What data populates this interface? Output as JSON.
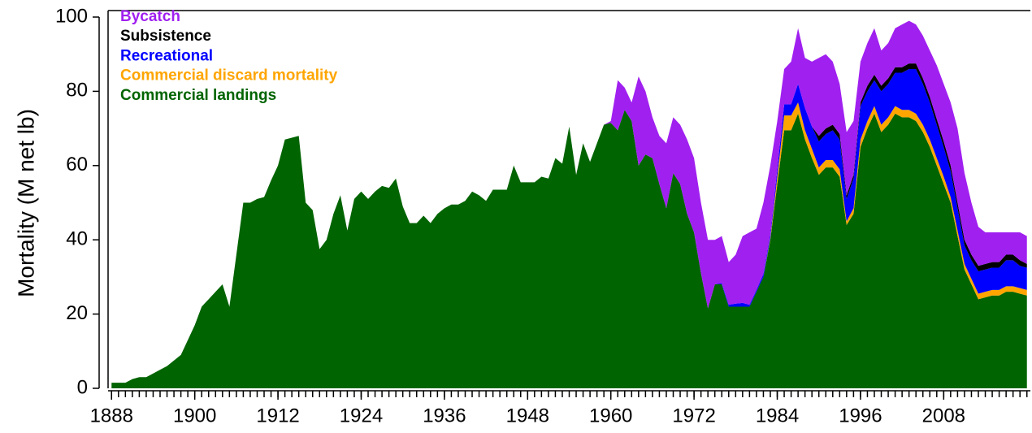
{
  "chart_data": {
    "type": "stacked-area",
    "y_label": "Mortality (M net lb)",
    "x": [
      1888,
      1889,
      1890,
      1891,
      1892,
      1893,
      1894,
      1895,
      1896,
      1897,
      1898,
      1899,
      1900,
      1901,
      1902,
      1903,
      1904,
      1905,
      1906,
      1907,
      1908,
      1909,
      1910,
      1911,
      1912,
      1913,
      1914,
      1915,
      1916,
      1917,
      1918,
      1919,
      1920,
      1921,
      1922,
      1923,
      1924,
      1925,
      1926,
      1927,
      1928,
      1929,
      1930,
      1931,
      1932,
      1933,
      1934,
      1935,
      1936,
      1937,
      1938,
      1939,
      1940,
      1941,
      1942,
      1943,
      1944,
      1945,
      1946,
      1947,
      1948,
      1949,
      1950,
      1951,
      1952,
      1953,
      1954,
      1955,
      1956,
      1957,
      1958,
      1959,
      1960,
      1961,
      1962,
      1963,
      1964,
      1965,
      1966,
      1967,
      1968,
      1969,
      1970,
      1971,
      1972,
      1973,
      1974,
      1975,
      1976,
      1977,
      1978,
      1979,
      1980,
      1981,
      1982,
      1983,
      1984,
      1985,
      1986,
      1987,
      1988,
      1989,
      1990,
      1991,
      1992,
      1993,
      1994,
      1995,
      1996,
      1997,
      1998,
      1999,
      2000,
      2001,
      2002,
      2003,
      2004,
      2005,
      2006,
      2007,
      2008,
      2009,
      2010,
      2011,
      2012,
      2013,
      2014,
      2015,
      2016,
      2017,
      2018,
      2019,
      2020
    ],
    "xlim": [
      1887.5,
      2020.5
    ],
    "xticks": [
      1888,
      1900,
      1912,
      1924,
      1936,
      1948,
      1960,
      1972,
      1984,
      1996,
      2008
    ],
    "ylim": [
      0,
      100
    ],
    "yticks": [
      0,
      20,
      40,
      60,
      80,
      100
    ],
    "series": [
      {
        "name": "Commercial landings",
        "color": "#006400",
        "values": [
          1.5,
          1.5,
          1.5,
          2.5,
          3,
          3,
          4,
          5,
          6,
          7.5,
          9,
          13,
          17,
          22,
          24,
          26,
          28,
          22,
          36,
          50,
          50,
          51,
          51.5,
          56,
          60,
          67,
          67.5,
          68,
          50,
          48,
          37.5,
          40,
          47,
          52,
          42.5,
          51,
          53,
          51,
          53,
          54.5,
          54,
          56.5,
          49,
          44.5,
          44.5,
          46.5,
          44.5,
          47,
          48.5,
          49.5,
          49.5,
          50.5,
          53,
          52,
          50.5,
          53.5,
          53.5,
          53.5,
          60,
          55.5,
          55.5,
          55.5,
          57,
          56.5,
          62,
          60.5,
          70.5,
          57.5,
          66,
          61,
          66,
          71,
          71.5,
          69.5,
          75,
          72,
          60,
          63,
          62,
          55,
          48.5,
          58,
          55,
          47,
          42,
          31,
          21.5,
          28,
          28,
          22,
          22,
          22,
          22,
          26,
          30,
          40,
          55,
          69.5,
          69.5,
          74,
          67,
          62,
          57.5,
          59.5,
          59.5,
          57,
          44,
          47,
          65,
          70,
          74,
          69,
          71,
          74,
          73,
          73,
          72,
          69,
          65,
          60,
          55,
          50,
          41,
          32,
          28,
          24,
          24.5,
          25,
          25,
          26,
          26,
          25.5,
          25
        ]
      },
      {
        "name": "Commercial discard mortality",
        "color": "#FFA500",
        "values": [
          0,
          0,
          0,
          0,
          0,
          0,
          0,
          0,
          0,
          0,
          0,
          0,
          0,
          0,
          0,
          0,
          0,
          0,
          0,
          0,
          0,
          0,
          0,
          0,
          0,
          0,
          0,
          0,
          0,
          0,
          0,
          0,
          0,
          0,
          0,
          0,
          0,
          0,
          0,
          0,
          0,
          0,
          0,
          0,
          0,
          0,
          0,
          0,
          0,
          0,
          0,
          0,
          0,
          0,
          0,
          0,
          0,
          0,
          0,
          0,
          0,
          0,
          0,
          0,
          0,
          0,
          0,
          0,
          0,
          0,
          0,
          0,
          0,
          0,
          0,
          0,
          0,
          0,
          0,
          0,
          0,
          0,
          0,
          0,
          0,
          0,
          0,
          0,
          0,
          0,
          0,
          0,
          0,
          0,
          0,
          0.5,
          2,
          4,
          4,
          3,
          2.5,
          2.5,
          2,
          2,
          2,
          2,
          1,
          1.5,
          2,
          2,
          2,
          2,
          2,
          2,
          2,
          2,
          2,
          2,
          2,
          2,
          2,
          1.5,
          1.5,
          1.5,
          1.5,
          1.5,
          1.5,
          1.5,
          1.5,
          1.5,
          1.5,
          1.5,
          1.5
        ]
      },
      {
        "name": "Recreational",
        "color": "#0000FF",
        "values": [
          0,
          0,
          0,
          0,
          0,
          0,
          0,
          0,
          0,
          0,
          0,
          0,
          0,
          0,
          0,
          0,
          0,
          0,
          0,
          0,
          0,
          0,
          0,
          0,
          0,
          0,
          0,
          0,
          0,
          0,
          0,
          0,
          0,
          0,
          0,
          0,
          0,
          0,
          0,
          0,
          0,
          0,
          0,
          0,
          0,
          0,
          0,
          0,
          0,
          0,
          0,
          0,
          0,
          0,
          0,
          0,
          0,
          0,
          0,
          0,
          0,
          0,
          0,
          0,
          0,
          0,
          0,
          0,
          0,
          0,
          0,
          0,
          0,
          0,
          0,
          0,
          0,
          0,
          0,
          0,
          0,
          0,
          0,
          0,
          0,
          0,
          0,
          0,
          0.3,
          0.5,
          0.8,
          1,
          0.5,
          0.5,
          0.8,
          1,
          2,
          3,
          3,
          5,
          6,
          6,
          7,
          7,
          8,
          8,
          6,
          8,
          9,
          8,
          7,
          9,
          9,
          9,
          10,
          11,
          12,
          11,
          10,
          9,
          8,
          7,
          6,
          5,
          5,
          6,
          6,
          6,
          6,
          7,
          7,
          6,
          6
        ]
      },
      {
        "name": "Subsistence",
        "color": "#000000",
        "values": [
          0,
          0,
          0,
          0,
          0,
          0,
          0,
          0,
          0,
          0,
          0,
          0,
          0,
          0,
          0,
          0,
          0,
          0,
          0,
          0,
          0,
          0,
          0,
          0,
          0,
          0,
          0,
          0,
          0,
          0,
          0,
          0,
          0,
          0,
          0,
          0,
          0,
          0,
          0,
          0,
          0,
          0,
          0,
          0,
          0,
          0,
          0,
          0,
          0,
          0,
          0,
          0,
          0,
          0,
          0,
          0,
          0,
          0,
          0,
          0,
          0,
          0,
          0,
          0,
          0,
          0,
          0,
          0,
          0,
          0,
          0,
          0,
          0,
          0,
          0,
          0,
          0,
          0,
          0,
          0,
          0,
          0,
          0,
          0,
          0,
          0,
          0,
          0,
          0,
          0,
          0,
          0,
          0,
          0,
          0,
          0,
          0,
          0,
          0,
          0,
          0,
          0,
          1.5,
          1.5,
          1.5,
          1.5,
          1,
          1,
          1,
          1.5,
          1.5,
          1.5,
          1.5,
          1.5,
          1.5,
          1.5,
          1.5,
          1.5,
          1.5,
          1.5,
          1.5,
          1.5,
          1.5,
          1.5,
          1.5,
          1.5,
          1.5,
          1.5,
          1.5,
          1.5,
          1.5,
          1.5,
          1
        ]
      },
      {
        "name": "Bycatch",
        "color": "#A020F0",
        "values": [
          0,
          0,
          0,
          0,
          0,
          0,
          0,
          0,
          0,
          0,
          0,
          0,
          0,
          0,
          0,
          0,
          0,
          0,
          0,
          0,
          0,
          0,
          0,
          0,
          0,
          0,
          0,
          0,
          0,
          0,
          0,
          0,
          0,
          0,
          0,
          0,
          0,
          0,
          0,
          0,
          0,
          0,
          0,
          0,
          0,
          0,
          0,
          0,
          0,
          0,
          0,
          0,
          0,
          0,
          0,
          0,
          0,
          0,
          0,
          0,
          0,
          0,
          0,
          0,
          0,
          0,
          0,
          0,
          0,
          0,
          0,
          0,
          0.5,
          13.5,
          6,
          5,
          24,
          17,
          11,
          13,
          17.5,
          15,
          16,
          20,
          20,
          19,
          18.5,
          12,
          12.7,
          11.5,
          13.2,
          18,
          19.5,
          16.5,
          19.2,
          18.5,
          13,
          9.5,
          11.5,
          15,
          13.5,
          17.5,
          21,
          20,
          17,
          13.5,
          17,
          14.5,
          11,
          11.5,
          12.5,
          9.5,
          9.5,
          10.5,
          11.5,
          11.5,
          10.5,
          11.5,
          12.5,
          14.5,
          15.5,
          17,
          20,
          18,
          14,
          10.5,
          8.5,
          8,
          8,
          6,
          6,
          7.5,
          7.5
        ]
      }
    ]
  }
}
